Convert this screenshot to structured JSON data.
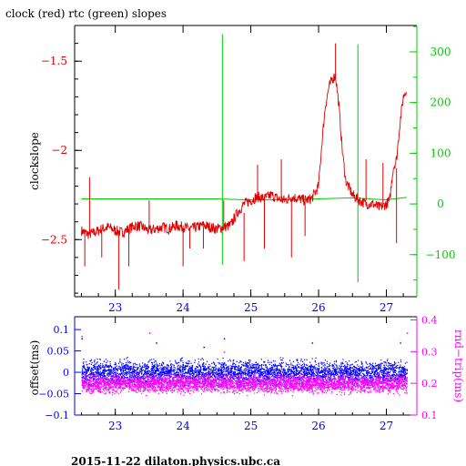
{
  "page": {
    "footer": "2015-11-22  dilaton.physics.ubc.ca"
  },
  "chart_data": [
    {
      "type": "line",
      "title": "clock (red) rtc (green) slopes",
      "xlim": [
        22.4,
        27.45
      ],
      "x_ticks": [
        23,
        24,
        25,
        26,
        27
      ],
      "left_axis": {
        "label": "clockslope",
        "ylim": [
          -2.82,
          -1.3
        ],
        "ticks": [
          -1.5,
          -2,
          -2.5
        ],
        "color": "#e00000"
      },
      "right_axis": {
        "label": "",
        "ylim": [
          -183,
          352
        ],
        "ticks": [
          300,
          200,
          100,
          0,
          -100
        ],
        "color": "#00cc00"
      },
      "series": [
        {
          "name": "clock",
          "axis": "left",
          "color": "#e00000",
          "points": [
            [
              22.5,
              -2.45
            ],
            [
              22.6,
              -2.47
            ],
            [
              22.7,
              -2.46
            ],
            [
              22.8,
              -2.44
            ],
            [
              22.9,
              -2.43
            ],
            [
              23.0,
              -2.45
            ],
            [
              23.1,
              -2.46
            ],
            [
              23.2,
              -2.44
            ],
            [
              23.3,
              -2.42
            ],
            [
              23.4,
              -2.43
            ],
            [
              23.5,
              -2.45
            ],
            [
              23.6,
              -2.44
            ],
            [
              23.7,
              -2.43
            ],
            [
              23.8,
              -2.44
            ],
            [
              23.9,
              -2.42
            ],
            [
              24.0,
              -2.43
            ],
            [
              24.1,
              -2.44
            ],
            [
              24.2,
              -2.43
            ],
            [
              24.3,
              -2.42
            ],
            [
              24.4,
              -2.43
            ],
            [
              24.5,
              -2.44
            ],
            [
              24.6,
              -2.43
            ],
            [
              24.7,
              -2.42
            ],
            [
              24.8,
              -2.35
            ],
            [
              24.9,
              -2.3
            ],
            [
              25.0,
              -2.28
            ],
            [
              25.1,
              -2.26
            ],
            [
              25.2,
              -2.27
            ],
            [
              25.3,
              -2.25
            ],
            [
              25.4,
              -2.27
            ],
            [
              25.5,
              -2.28
            ],
            [
              25.6,
              -2.26
            ],
            [
              25.7,
              -2.27
            ],
            [
              25.8,
              -2.28
            ],
            [
              25.9,
              -2.27
            ],
            [
              26.0,
              -2.2
            ],
            [
              26.05,
              -1.95
            ],
            [
              26.1,
              -1.75
            ],
            [
              26.15,
              -1.65
            ],
            [
              26.2,
              -1.6
            ],
            [
              26.25,
              -1.58
            ],
            [
              26.3,
              -1.75
            ],
            [
              26.35,
              -2.0
            ],
            [
              26.4,
              -2.17
            ],
            [
              26.5,
              -2.25
            ],
            [
              26.6,
              -2.28
            ],
            [
              26.7,
              -2.3
            ],
            [
              26.8,
              -2.3
            ],
            [
              26.9,
              -2.32
            ],
            [
              27.0,
              -2.3
            ],
            [
              27.05,
              -2.28
            ],
            [
              27.1,
              -2.1
            ],
            [
              27.15,
              -2.05
            ],
            [
              27.2,
              -1.85
            ],
            [
              27.25,
              -1.7
            ],
            [
              27.3,
              -1.65
            ]
          ],
          "spikes": [
            [
              22.55,
              -2.65
            ],
            [
              22.62,
              -2.15
            ],
            [
              22.8,
              -2.6
            ],
            [
              23.05,
              -2.78
            ],
            [
              23.2,
              -2.65
            ],
            [
              23.5,
              -2.28
            ],
            [
              24.0,
              -2.65
            ],
            [
              24.1,
              -2.55
            ],
            [
              24.3,
              -2.55
            ],
            [
              24.6,
              -2.28
            ],
            [
              24.9,
              -2.62
            ],
            [
              25.2,
              -2.55
            ],
            [
              25.1,
              -2.08
            ],
            [
              25.45,
              -2.05
            ],
            [
              25.6,
              -2.6
            ],
            [
              25.8,
              -2.48
            ],
            [
              26.25,
              -1.4
            ],
            [
              26.7,
              -2.05
            ],
            [
              26.95,
              -2.07
            ],
            [
              27.15,
              -2.52
            ]
          ]
        },
        {
          "name": "rtc",
          "axis": "right",
          "color": "#00cc00",
          "points": [
            [
              22.5,
              10
            ],
            [
              24.5,
              10
            ],
            [
              25.0,
              8
            ],
            [
              25.5,
              8
            ],
            [
              26.0,
              10
            ],
            [
              26.5,
              12
            ],
            [
              27.0,
              8
            ],
            [
              27.3,
              13
            ]
          ],
          "spikes": [
            [
              24.58,
              335,
              -120
            ],
            [
              26.58,
              315,
              -155
            ]
          ]
        }
      ]
    },
    {
      "type": "scatter",
      "xlim": [
        22.4,
        27.45
      ],
      "x_ticks": [
        23,
        24,
        25,
        26,
        27
      ],
      "left_axis": {
        "label": "offset(ms)",
        "ylim": [
          -0.1,
          0.13
        ],
        "ticks": [
          0.1,
          0.05,
          0,
          -0.05,
          -0.1
        ],
        "tick_labels": [
          "0.1",
          "0.05",
          "0",
          "−0.05",
          "−0.1"
        ],
        "color": "#0000ff"
      },
      "right_axis": {
        "label": "rnd−trip(ms)",
        "ylim": [
          0.1,
          0.41
        ],
        "ticks": [
          0.4,
          0.3,
          0.2,
          0.1
        ],
        "color": "#ff00ff"
      },
      "series": [
        {
          "name": "offset",
          "axis": "left",
          "color": "#0000ff",
          "x_range": [
            22.5,
            27.3
          ],
          "band_center": 0.0,
          "band_halfwidth": 0.03,
          "outliers": [
            [
              22.5,
              0.08
            ],
            [
              23.6,
              0.07
            ],
            [
              24.3,
              0.06
            ],
            [
              24.6,
              0.08
            ],
            [
              25.9,
              0.07
            ],
            [
              27.2,
              0.07
            ]
          ]
        },
        {
          "name": "rnd-trip",
          "axis": "right",
          "color": "#ff00ff",
          "x_range": [
            22.5,
            27.3
          ],
          "band_center": 0.2,
          "band_halfwidth": 0.03,
          "outliers": [
            [
              22.5,
              0.35
            ],
            [
              23.5,
              0.36
            ],
            [
              24.6,
              0.3
            ],
            [
              25.9,
              0.28
            ],
            [
              27.3,
              0.36
            ],
            [
              27.2,
              0.33
            ]
          ]
        }
      ]
    }
  ]
}
